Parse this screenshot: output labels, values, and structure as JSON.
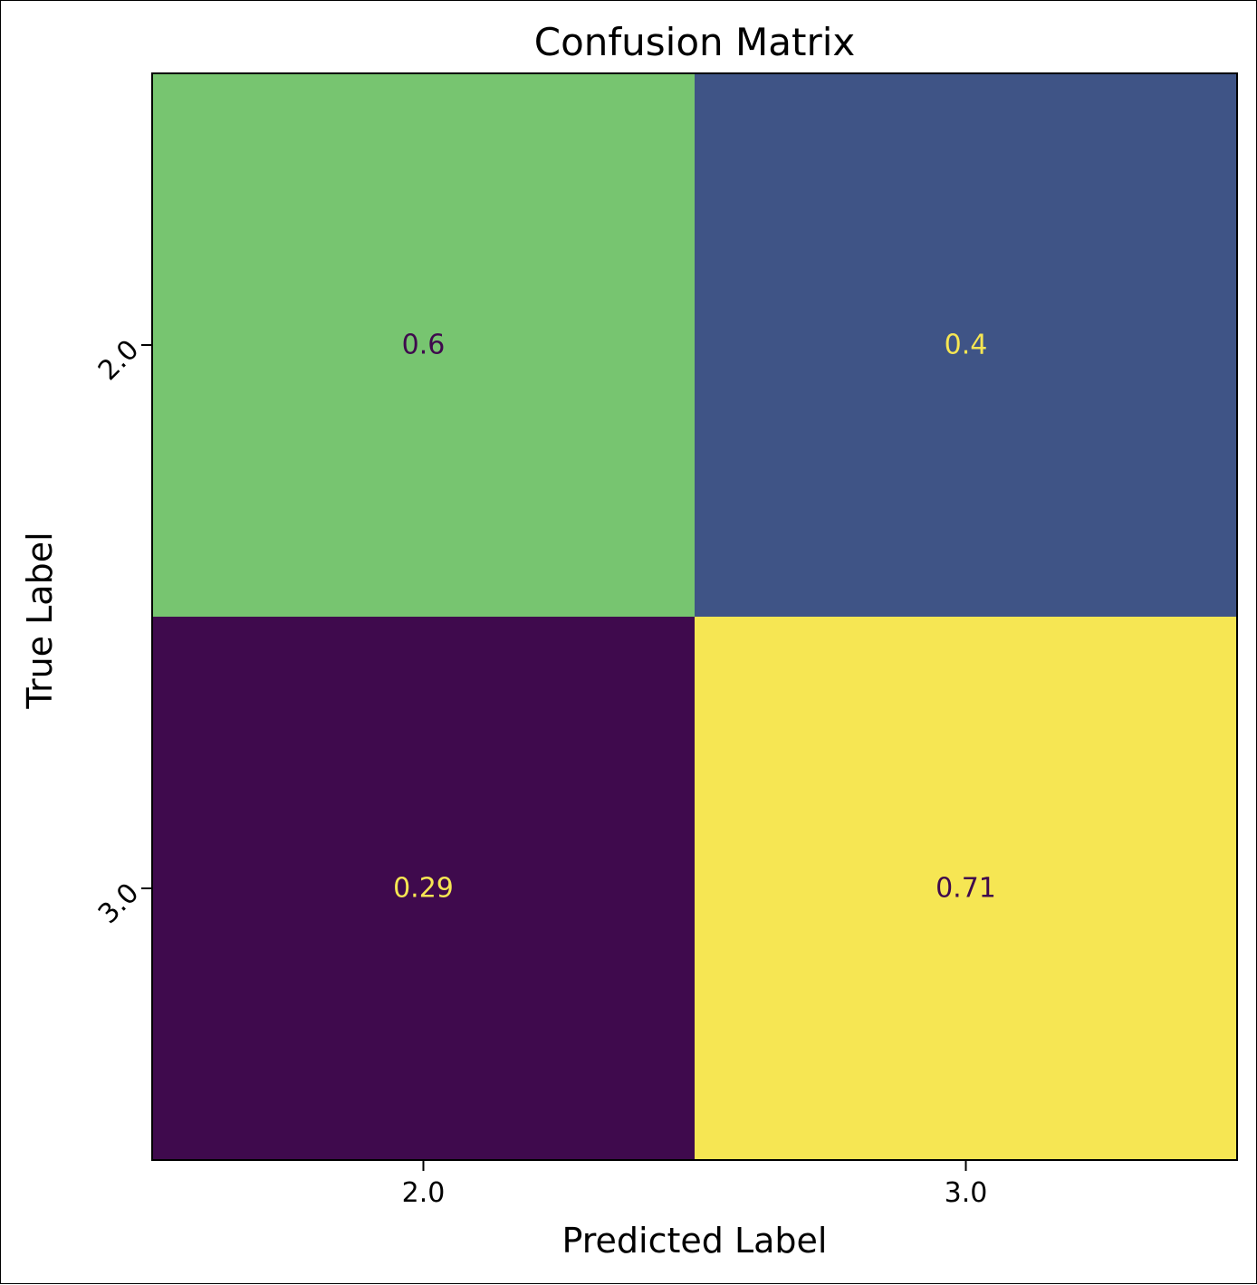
{
  "chart_data": {
    "type": "heatmap",
    "title": "Confusion Matrix",
    "xlabel": "Predicted Label",
    "ylabel": "True Label",
    "x_categories": [
      "2.0",
      "3.0"
    ],
    "y_categories": [
      "2.0",
      "3.0"
    ],
    "values": [
      [
        0.6,
        0.4
      ],
      [
        0.29,
        0.71
      ]
    ],
    "value_labels": [
      [
        "0.6",
        "0.4"
      ],
      [
        "0.29",
        "0.71"
      ]
    ],
    "colormap": "viridis",
    "cell_colors": [
      [
        "#77c570",
        "#3f5486"
      ],
      [
        "#3f0a4d",
        "#f6e653"
      ]
    ],
    "text_colors": [
      [
        "#3f0a4d",
        "#f6e653"
      ],
      [
        "#f6e653",
        "#3f0a4d"
      ]
    ],
    "colorbar": false,
    "grid": false
  }
}
